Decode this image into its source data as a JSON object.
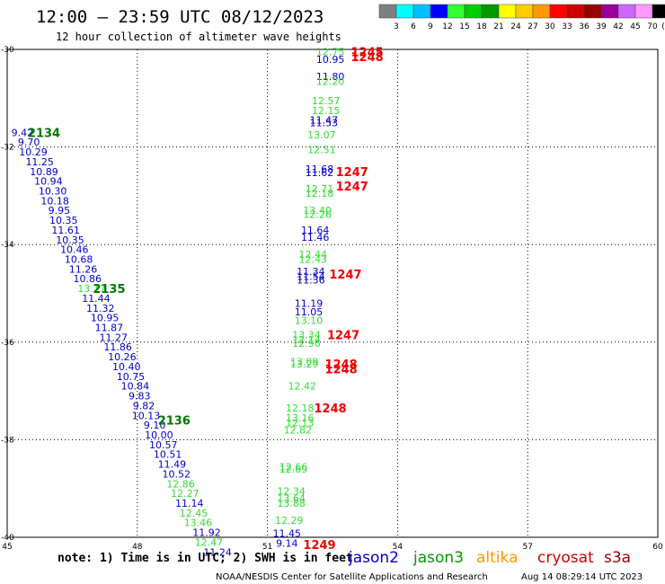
{
  "header": {
    "title": "12:00 – 23:59 UTC 08/12/2023",
    "subtitle": "12 hour collection of altimeter wave heights"
  },
  "colorbar": {
    "labels": [
      "3",
      "6",
      "9",
      "12",
      "15",
      "18",
      "21",
      "24",
      "27",
      "30",
      "33",
      "36",
      "39",
      "42",
      "45",
      "70"
    ],
    "colors": [
      "#7f7f7f",
      "#00ffff",
      "#00bfff",
      "#0000ff",
      "#33ff33",
      "#00cc00",
      "#009900",
      "#ffff00",
      "#ffcc00",
      "#ff9900",
      "#ff0000",
      "#cc0000",
      "#990000",
      "#990099",
      "#cc66ff",
      "#ff99ff",
      "#000000"
    ],
    "unit": "(ft)"
  },
  "footer": {
    "note": "note:  1) Time is in UTC;  2) SWH is in feet",
    "satellites": [
      {
        "name": "jason2",
        "color": "#0000cc"
      },
      {
        "name": "jason3",
        "color": "#009900"
      },
      {
        "name": "altika",
        "color": "#ff9900"
      },
      {
        "name": "cryosat",
        "color": "#cc0000"
      },
      {
        "name": "s3a",
        "color": "#990000"
      }
    ],
    "credit": "NOAA/NESDIS Center for Satellite Applications and Research",
    "timestamp": "Aug 14 08:29:14 UTC 2023"
  },
  "chart_data": {
    "type": "scatter",
    "xlim": [
      45,
      60
    ],
    "ylim": [
      -40,
      -30
    ],
    "xticks": [
      "45",
      "48",
      "51",
      "54",
      "57",
      "60"
    ],
    "yticks": [
      "-30",
      "-32",
      "-34",
      "-36",
      "-38",
      "-40"
    ],
    "grid": true,
    "colors": {
      "blue": "#0000cc",
      "lgreen": "#33dd33",
      "green": "#007700",
      "red": "#ee0000"
    },
    "points": [
      {
        "x": 52.45,
        "y": -30.05,
        "text": "12.75",
        "c": "lgreen"
      },
      {
        "x": 52.45,
        "y": -30.2,
        "text": "10.95",
        "c": "blue"
      },
      {
        "x": 52.45,
        "y": -30.55,
        "text": "11.80",
        "c": "blue"
      },
      {
        "x": 52.45,
        "y": -30.65,
        "text": "12.20",
        "c": "lgreen"
      },
      {
        "x": 52.35,
        "y": -31.05,
        "text": "12.57",
        "c": "lgreen"
      },
      {
        "x": 52.35,
        "y": -31.25,
        "text": "12.15",
        "c": "lgreen"
      },
      {
        "x": 52.3,
        "y": -31.45,
        "text": "11.47",
        "c": "blue"
      },
      {
        "x": 52.3,
        "y": -31.5,
        "text": "11.53",
        "c": "blue"
      },
      {
        "x": 52.25,
        "y": -31.75,
        "text": "13.07",
        "c": "lgreen"
      },
      {
        "x": 52.25,
        "y": -32.05,
        "text": "12.51",
        "c": "lgreen"
      },
      {
        "x": 52.2,
        "y": -32.45,
        "text": "11.68",
        "c": "blue"
      },
      {
        "x": 52.2,
        "y": -32.52,
        "text": "11.62",
        "c": "blue"
      },
      {
        "x": 52.2,
        "y": -32.85,
        "text": "12.71",
        "c": "lgreen"
      },
      {
        "x": 52.2,
        "y": -32.95,
        "text": "12.18",
        "c": "lgreen"
      },
      {
        "x": 52.15,
        "y": -33.3,
        "text": "13.40",
        "c": "lgreen"
      },
      {
        "x": 52.15,
        "y": -33.38,
        "text": "12.26",
        "c": "lgreen"
      },
      {
        "x": 52.1,
        "y": -33.7,
        "text": "11.64",
        "c": "blue"
      },
      {
        "x": 52.1,
        "y": -33.85,
        "text": "11.46",
        "c": "blue"
      },
      {
        "x": 52.05,
        "y": -34.2,
        "text": "12.44",
        "c": "lgreen"
      },
      {
        "x": 52.05,
        "y": -34.3,
        "text": "12.43",
        "c": "lgreen"
      },
      {
        "x": 52.0,
        "y": -34.55,
        "text": "11.34",
        "c": "blue"
      },
      {
        "x": 52.0,
        "y": -34.65,
        "text": "11.54",
        "c": "blue"
      },
      {
        "x": 52.0,
        "y": -34.72,
        "text": "11.36",
        "c": "blue"
      },
      {
        "x": 51.95,
        "y": -35.2,
        "text": "11.19",
        "c": "blue"
      },
      {
        "x": 51.95,
        "y": -35.38,
        "text": "11.05",
        "c": "blue"
      },
      {
        "x": 51.95,
        "y": -35.55,
        "text": "13.10",
        "c": "lgreen"
      },
      {
        "x": 51.9,
        "y": -35.85,
        "text": "13.34",
        "c": "lgreen"
      },
      {
        "x": 51.9,
        "y": -35.95,
        "text": "12.14",
        "c": "lgreen"
      },
      {
        "x": 51.9,
        "y": -36.02,
        "text": "12.96",
        "c": "lgreen"
      },
      {
        "x": 51.85,
        "y": -36.4,
        "text": "13.09",
        "c": "lgreen"
      },
      {
        "x": 51.85,
        "y": -36.45,
        "text": "13.29",
        "c": "lgreen"
      },
      {
        "x": 51.8,
        "y": -36.9,
        "text": "12.42",
        "c": "lgreen"
      },
      {
        "x": 51.75,
        "y": -37.35,
        "text": "12.18",
        "c": "lgreen"
      },
      {
        "x": 51.75,
        "y": -37.55,
        "text": "13.16",
        "c": "lgreen"
      },
      {
        "x": 51.75,
        "y": -37.65,
        "text": "12.13",
        "c": "lgreen"
      },
      {
        "x": 51.7,
        "y": -37.8,
        "text": "12.82",
        "c": "lgreen"
      },
      {
        "x": 51.6,
        "y": -38.55,
        "text": "12.66",
        "c": "lgreen"
      },
      {
        "x": 51.6,
        "y": -38.6,
        "text": "12.69",
        "c": "lgreen"
      },
      {
        "x": 51.55,
        "y": -39.05,
        "text": "12.34",
        "c": "lgreen"
      },
      {
        "x": 51.55,
        "y": -39.2,
        "text": "13.64",
        "c": "lgreen"
      },
      {
        "x": 51.55,
        "y": -39.3,
        "text": "13.88",
        "c": "lgreen"
      },
      {
        "x": 51.5,
        "y": -39.65,
        "text": "12.29",
        "c": "lgreen"
      },
      {
        "x": 51.45,
        "y": -39.92,
        "text": "11.45",
        "c": "blue"
      },
      {
        "x": 51.45,
        "y": -40.12,
        "text": "9.14",
        "c": "blue"
      },
      {
        "x": 45.35,
        "y": -31.7,
        "text": "9.42",
        "c": "blue"
      },
      {
        "x": 45.5,
        "y": -31.9,
        "text": "9.70",
        "c": "blue"
      },
      {
        "x": 45.6,
        "y": -32.1,
        "text": "10.29",
        "c": "blue"
      },
      {
        "x": 45.75,
        "y": -32.3,
        "text": "11.25",
        "c": "blue"
      },
      {
        "x": 45.85,
        "y": -32.5,
        "text": "10.89",
        "c": "blue"
      },
      {
        "x": 45.95,
        "y": -32.7,
        "text": "10.94",
        "c": "blue"
      },
      {
        "x": 46.05,
        "y": -32.9,
        "text": "10.30",
        "c": "blue"
      },
      {
        "x": 46.1,
        "y": -33.1,
        "text": "10.18",
        "c": "blue"
      },
      {
        "x": 46.2,
        "y": -33.3,
        "text": "9.95",
        "c": "blue"
      },
      {
        "x": 46.3,
        "y": -33.5,
        "text": "10.35",
        "c": "blue"
      },
      {
        "x": 46.35,
        "y": -33.7,
        "text": "11.61",
        "c": "blue"
      },
      {
        "x": 46.45,
        "y": -33.9,
        "text": "10.35",
        "c": "blue"
      },
      {
        "x": 46.55,
        "y": -34.1,
        "text": "10.46",
        "c": "blue"
      },
      {
        "x": 46.65,
        "y": -34.3,
        "text": "10.68",
        "c": "blue"
      },
      {
        "x": 46.75,
        "y": -34.5,
        "text": "11.26",
        "c": "blue"
      },
      {
        "x": 46.85,
        "y": -34.7,
        "text": "10.86",
        "c": "blue"
      },
      {
        "x": 46.95,
        "y": -34.9,
        "text": "13.17",
        "c": "lgreen"
      },
      {
        "x": 47.05,
        "y": -35.1,
        "text": "11.44",
        "c": "blue"
      },
      {
        "x": 47.15,
        "y": -35.3,
        "text": "11.32",
        "c": "blue"
      },
      {
        "x": 47.25,
        "y": -35.5,
        "text": "10.95",
        "c": "blue"
      },
      {
        "x": 47.35,
        "y": -35.7,
        "text": "11.87",
        "c": "blue"
      },
      {
        "x": 47.45,
        "y": -35.9,
        "text": "11.27",
        "c": "blue"
      },
      {
        "x": 47.55,
        "y": -36.1,
        "text": "11.86",
        "c": "blue"
      },
      {
        "x": 47.65,
        "y": -36.3,
        "text": "10.26",
        "c": "blue"
      },
      {
        "x": 47.75,
        "y": -36.5,
        "text": "10.40",
        "c": "blue"
      },
      {
        "x": 47.85,
        "y": -36.7,
        "text": "10.75",
        "c": "blue"
      },
      {
        "x": 47.95,
        "y": -36.9,
        "text": "10.84",
        "c": "blue"
      },
      {
        "x": 48.05,
        "y": -37.1,
        "text": "9.83",
        "c": "blue"
      },
      {
        "x": 48.15,
        "y": -37.3,
        "text": "9.82",
        "c": "blue"
      },
      {
        "x": 48.2,
        "y": -37.5,
        "text": "10.13",
        "c": "blue"
      },
      {
        "x": 48.4,
        "y": -37.7,
        "text": "9.10",
        "c": "blue"
      },
      {
        "x": 48.5,
        "y": -37.9,
        "text": "10.00",
        "c": "blue"
      },
      {
        "x": 48.6,
        "y": -38.1,
        "text": "10.57",
        "c": "blue"
      },
      {
        "x": 48.7,
        "y": -38.3,
        "text": "10.51",
        "c": "blue"
      },
      {
        "x": 48.8,
        "y": -38.5,
        "text": "11.49",
        "c": "blue"
      },
      {
        "x": 48.9,
        "y": -38.7,
        "text": "10.52",
        "c": "blue"
      },
      {
        "x": 49.0,
        "y": -38.9,
        "text": "12.86",
        "c": "lgreen"
      },
      {
        "x": 49.1,
        "y": -39.1,
        "text": "12.27",
        "c": "lgreen"
      },
      {
        "x": 49.2,
        "y": -39.3,
        "text": "11.14",
        "c": "blue"
      },
      {
        "x": 49.3,
        "y": -39.5,
        "text": "12.45",
        "c": "lgreen"
      },
      {
        "x": 49.4,
        "y": -39.7,
        "text": "13.46",
        "c": "lgreen"
      },
      {
        "x": 49.6,
        "y": -39.9,
        "text": "11.92",
        "c": "blue"
      },
      {
        "x": 49.65,
        "y": -40.1,
        "text": "12.47",
        "c": "lgreen"
      },
      {
        "x": 49.85,
        "y": -40.3,
        "text": "11.24",
        "c": "blue"
      }
    ],
    "passes": [
      {
        "x": 45.85,
        "y": -31.7,
        "text": "2134",
        "c": "green"
      },
      {
        "x": 47.35,
        "y": -34.9,
        "text": "2135",
        "c": "green"
      },
      {
        "x": 48.85,
        "y": -37.6,
        "text": "2136",
        "c": "green"
      },
      {
        "x": 53.3,
        "y": -30.05,
        "text": "1245",
        "c": "red"
      },
      {
        "x": 53.3,
        "y": -30.15,
        "text": "1248",
        "c": "red"
      },
      {
        "x": 52.95,
        "y": -32.5,
        "text": "1247",
        "c": "red"
      },
      {
        "x": 52.95,
        "y": -32.8,
        "text": "1247",
        "c": "red"
      },
      {
        "x": 52.8,
        "y": -34.6,
        "text": "1247",
        "c": "red"
      },
      {
        "x": 52.75,
        "y": -35.85,
        "text": "1247",
        "c": "red"
      },
      {
        "x": 52.7,
        "y": -36.45,
        "text": "1248",
        "c": "red"
      },
      {
        "x": 52.7,
        "y": -36.55,
        "text": "1248",
        "c": "red"
      },
      {
        "x": 52.45,
        "y": -37.35,
        "text": "1248",
        "c": "red"
      },
      {
        "x": 52.2,
        "y": -40.15,
        "text": "1249",
        "c": "red"
      }
    ]
  }
}
